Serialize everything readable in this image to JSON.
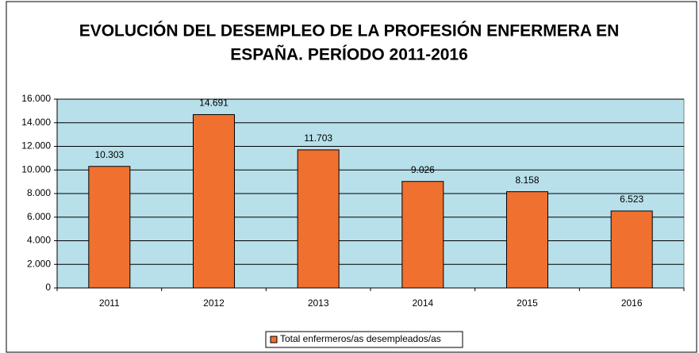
{
  "chart_data": {
    "type": "bar",
    "title": [
      "EVOLUCIÓN DEL DESEMPLEO DE LA PROFESIÓN ENFERMERA EN",
      "ESPAÑA. PERÍODO 2011-2016"
    ],
    "categories": [
      "2011",
      "2012",
      "2013",
      "2014",
      "2015",
      "2016"
    ],
    "series": [
      {
        "name": "Total enfermeros/as desempleados/as",
        "color": "#f07030",
        "values": [
          10303,
          14691,
          11703,
          9026,
          8158,
          6523
        ],
        "value_labels": [
          "10.303",
          "14.691",
          "11.703",
          "9.026",
          "8.158",
          "6.523"
        ]
      }
    ],
    "ylim": [
      0,
      16000
    ],
    "yticks": [
      0,
      {
        "value": 2000,
        "label": "2.000"
      },
      {
        "value": 4000,
        "label": "4.000"
      },
      {
        "value": 6000,
        "label": "6.000"
      },
      {
        "value": 8000,
        "label": "8.000"
      },
      {
        "value": 10000,
        "label": "10.000"
      },
      {
        "value": 12000,
        "label": "12.000"
      },
      {
        "value": 14000,
        "label": "14.000"
      },
      {
        "value": 16000,
        "label": "16.000"
      }
    ],
    "grid": true,
    "plot_background": "#b7e0ea",
    "legend": "bottom"
  }
}
